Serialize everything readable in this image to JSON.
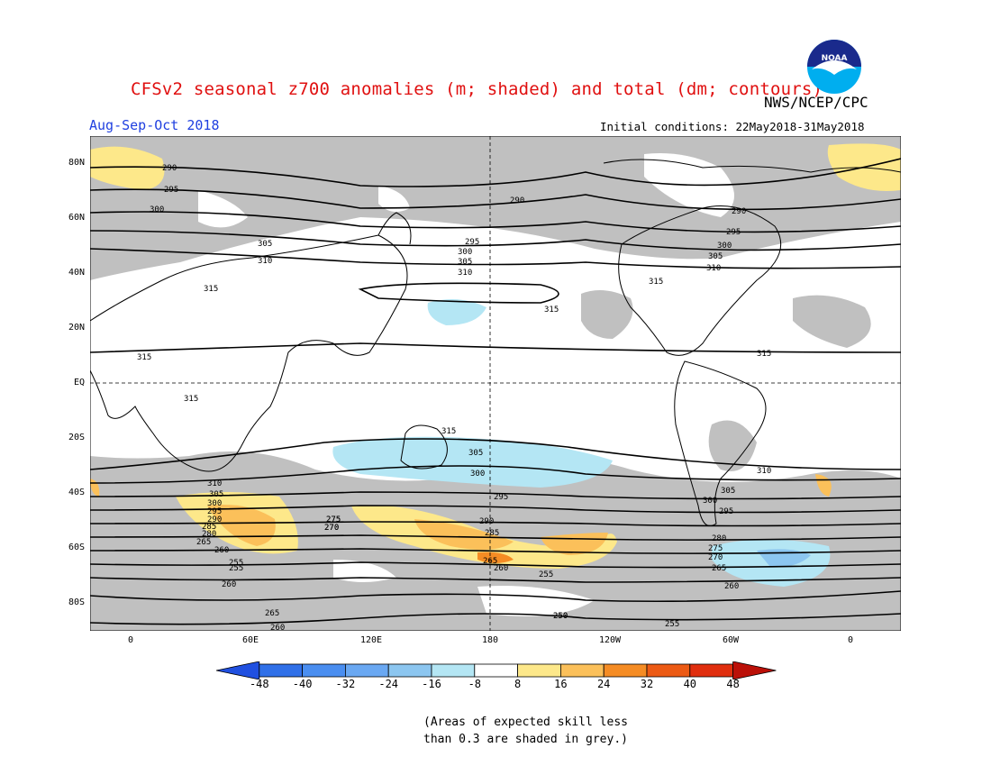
{
  "header": {
    "title": "CFSv2 seasonal z700 anomalies (m; shaded) and total (dm; contours)",
    "organization": "NWS/NCEP/CPC",
    "season": "Aug-Sep-Oct 2018",
    "initial_conditions": "Initial conditions: 22May2018-31May2018",
    "logo_text": "NOAA"
  },
  "map": {
    "lat_labels": [
      "80N",
      "60N",
      "40N",
      "20N",
      "EQ",
      "20S",
      "40S",
      "60S",
      "80S"
    ],
    "lon_labels": [
      "0",
      "60E",
      "120E",
      "180",
      "120W",
      "60W",
      "0"
    ],
    "contour_labels": [
      "290",
      "295",
      "300",
      "305",
      "310",
      "315",
      "315",
      "315",
      "315",
      "290",
      "295",
      "300",
      "305",
      "310",
      "315",
      "290",
      "295",
      "300",
      "305",
      "310",
      "315",
      "315",
      "310",
      "305",
      "300",
      "295",
      "310",
      "305",
      "300",
      "295",
      "290",
      "285",
      "280",
      "275",
      "270",
      "265",
      "260",
      "255",
      "250",
      "255",
      "260",
      "265",
      "255",
      "260",
      "265",
      "260",
      "275",
      "270",
      "305",
      "300",
      "295",
      "290",
      "285",
      "280",
      "275",
      "270",
      "265",
      "260",
      "250",
      "255"
    ]
  },
  "colorbar": {
    "ticks": [
      "-48",
      "-40",
      "-32",
      "-24",
      "-16",
      "-8",
      "8",
      "16",
      "24",
      "32",
      "40",
      "48"
    ],
    "colors": [
      "#2050e0",
      "#3070e8",
      "#4a8ef0",
      "#6aa8f2",
      "#8cc6f0",
      "#b4e6f4",
      "#ffffff",
      "#fde88a",
      "#fbc05a",
      "#f58c24",
      "#ec5a14",
      "#e02e0e",
      "#bb1008"
    ]
  },
  "footnote": {
    "line1": "(Areas of expected skill less",
    "line2": "than 0.3 are shaded in grey.)"
  }
}
